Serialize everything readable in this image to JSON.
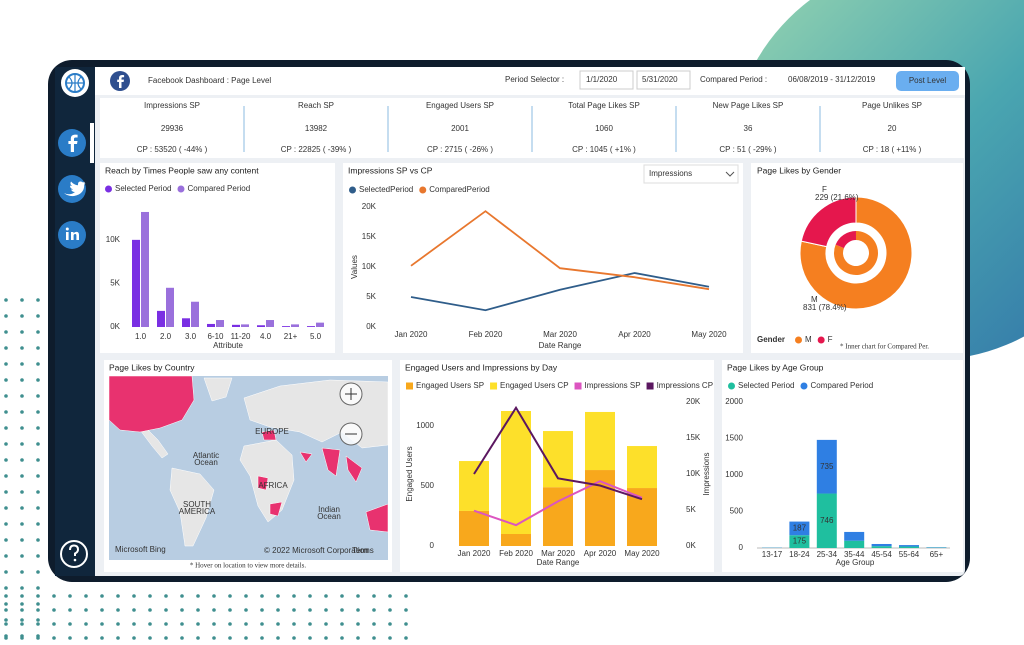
{
  "header": {
    "title": "Facebook Dashboard : Page Level",
    "period_label": "Period Selector :",
    "start": "1/1/2020",
    "end": "5/31/2020",
    "compared_label": "Compared Period :",
    "compared_range": "06/08/2019 - 31/12/2019",
    "button": "Post Level"
  },
  "kpis": [
    {
      "label": "Impressions SP",
      "value": 29936,
      "cp": "CP : 53520 ( -44% )",
      "color": "#c8414d"
    },
    {
      "label": "Reach SP",
      "value": 13982,
      "cp": "CP : 22825 ( -39% )",
      "color": "#c8414d"
    },
    {
      "label": "Engaged Users SP",
      "value": 2001,
      "cp": "CP : 2715 ( -26% )",
      "color": "#c8414d"
    },
    {
      "label": "Total Page Likes SP",
      "value": 1060,
      "cp": "CP : 1045 ( +1% )",
      "color": "#2f8f45"
    },
    {
      "label": "New Page Likes SP",
      "value": 36,
      "cp": "CP : 51 ( -29% )",
      "color": "#c8414d"
    },
    {
      "label": "Page Unlikes SP",
      "value": 20,
      "cp": "CP : 18 ( +11% )",
      "color": "#c8414d"
    }
  ],
  "chart_data": [
    {
      "type": "bar",
      "title": "Reach by Times People saw any content",
      "categories": [
        "1.0",
        "2.0",
        "3.0",
        "6-10",
        "11-20",
        "4.0",
        "21+",
        "5.0"
      ],
      "series": [
        {
          "name": "Selected Period",
          "color": "#7a2fe3",
          "values": [
            10000,
            1850,
            1000,
            350,
            250,
            200,
            100,
            100
          ]
        },
        {
          "name": "Compared Period",
          "color": "#9a70dc",
          "values": [
            13200,
            4500,
            2900,
            800,
            300,
            800,
            300,
            500
          ]
        }
      ],
      "ylim": [
        0,
        14000
      ],
      "yticks": [
        {
          "value": 0,
          "label": "0K"
        },
        {
          "value": 5000,
          "label": "5K"
        },
        {
          "value": 10000,
          "label": "10K"
        }
      ],
      "xlabel": "Attribute"
    },
    {
      "type": "line",
      "title": "Impressions SP vs CP",
      "dropdown": "Impressions",
      "categories": [
        "Jan 2020",
        "Feb 2020",
        "Mar 2020",
        "Apr 2020",
        "May 2020"
      ],
      "series": [
        {
          "name": "SelectedPeriod",
          "color": "#2f5d8a",
          "values": [
            5000,
            2800,
            6200,
            9000,
            6700
          ]
        },
        {
          "name": "ComparedPeriod",
          "color": "#e8772e",
          "values": [
            10200,
            19300,
            9800,
            8300,
            6300
          ]
        }
      ],
      "ylim": [
        0,
        20000
      ],
      "yticks": [
        {
          "value": 0,
          "label": "0K"
        },
        {
          "value": 5000,
          "label": "5K"
        },
        {
          "value": 10000,
          "label": "10K"
        },
        {
          "value": 15000,
          "label": "15K"
        },
        {
          "value": 20000,
          "label": "20K"
        }
      ],
      "ylabel": "Values",
      "xlabel": "Date Range"
    },
    {
      "type": "donut",
      "title": "Page Likes by Gender",
      "categories": [
        "M",
        "F"
      ],
      "values": [
        831,
        229
      ],
      "value_labels": [
        "831 (78.4%)",
        "229 (21.6%)"
      ],
      "colors": [
        "#f57f20",
        "#e5174d"
      ],
      "legend_title": "Gender",
      "note": "* Inner chart for Compared Per."
    },
    {
      "type": "map",
      "title": "Page Likes by Country",
      "labels": [
        "EUROPE",
        "Atlantic",
        "Ocean",
        "AFRICA",
        "SOUTH",
        "AMERICA",
        "Indian",
        "Ocean"
      ],
      "attribution": "Microsoft Bing",
      "copyright": "© 2022 Microsoft Corporation",
      "terms": "Terms",
      "note": "* Hover on location to view more details."
    },
    {
      "type": "combo",
      "title": "Engaged Users and Impressions by Day",
      "categories": [
        "Jan 2020",
        "Feb 2020",
        "Mar 2020",
        "Apr 2020",
        "May 2020"
      ],
      "series": [
        {
          "name": "Engaged Users SP",
          "color": "#f8a81c",
          "mark": "bar",
          "values": [
            292,
            100,
            490,
            633,
            483
          ]
        },
        {
          "name": "Engaged Users CP",
          "color": "#fde02a",
          "mark": "bar",
          "values": [
            416,
            1025,
            468,
            484,
            350
          ]
        },
        {
          "name": "Impressions SP",
          "color": "#dc55c0",
          "mark": "line",
          "axis": "y2",
          "values": [
            4900,
            2900,
            6200,
            9000,
            6700
          ]
        },
        {
          "name": "Impressions CP",
          "color": "#5b1760",
          "mark": "line",
          "axis": "y2",
          "values": [
            10000,
            19200,
            9400,
            8400,
            6500
          ]
        }
      ],
      "ylim": [
        0,
        1200
      ],
      "yticks": [
        0,
        500,
        1000
      ],
      "y2lim": [
        0,
        20000
      ],
      "y2ticks": [
        {
          "value": 0,
          "label": "0K"
        },
        {
          "value": 5000,
          "label": "5K"
        },
        {
          "value": 10000,
          "label": "10K"
        },
        {
          "value": 15000,
          "label": "15K"
        },
        {
          "value": 20000,
          "label": "20K"
        }
      ],
      "ylabel": "Engaged Users",
      "y2label": "Impressions",
      "xlabel": "Date Range"
    },
    {
      "type": "stacked_bar",
      "title": "Page Likes by Age Group",
      "categories": [
        "13-17",
        "18-24",
        "25-34",
        "35-44",
        "45-54",
        "55-64",
        "65+"
      ],
      "series": [
        {
          "name": "Selected Period",
          "color": "#1fbf9f",
          "values": [
            3,
            175,
            746,
            100,
            25,
            20,
            5
          ]
        },
        {
          "name": "Compared Period",
          "color": "#2f7fe3",
          "values": [
            3,
            187,
            735,
            120,
            30,
            20,
            5
          ]
        }
      ],
      "ylim": [
        0,
        2000
      ],
      "yticks": [
        0,
        500,
        1000,
        1500,
        2000
      ],
      "xlabel": "Age Group"
    }
  ]
}
